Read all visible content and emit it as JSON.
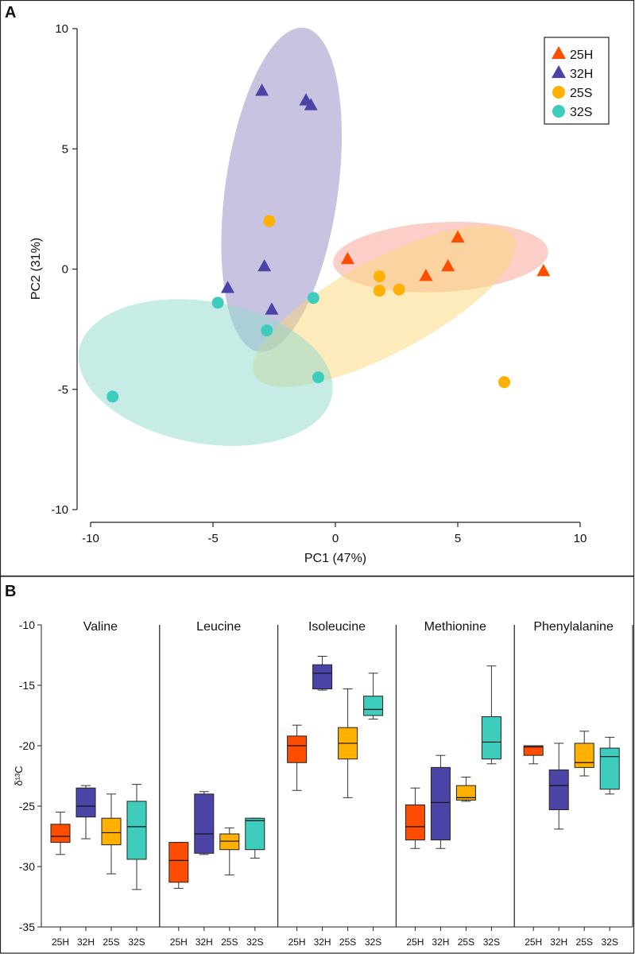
{
  "panels": {
    "a_label": "A",
    "b_label": "B"
  },
  "colors": {
    "25H": "#ff4d00",
    "32H": "#4b44a6",
    "25S": "#ffb000",
    "32S": "#3ecdbd",
    "ellipse_25H": "#f7a090",
    "ellipse_32H": "#8f87c4",
    "ellipse_25S": "#fcd77a",
    "ellipse_32S": "#8fd9cd"
  },
  "chart_data": [
    {
      "type": "scatter",
      "panel": "A",
      "xlabel": "PC1 (47%)",
      "ylabel": "PC2 (31%)",
      "xlim": [
        -10,
        10
      ],
      "ylim": [
        -10,
        10
      ],
      "xticks": [
        -10,
        -5,
        0,
        5,
        10
      ],
      "yticks": [
        10,
        5,
        0,
        -5,
        -10
      ],
      "xtick_labels": [
        "-10",
        "-5",
        "0",
        "5",
        "10"
      ],
      "ytick_labels": [
        "10",
        "5",
        "0",
        "-5",
        "-10"
      ],
      "legend_position": "top-right",
      "series": [
        {
          "name": "25H",
          "marker": "triangle",
          "points": [
            [
              0.5,
              0.4
            ],
            [
              3.7,
              -0.3
            ],
            [
              4.6,
              0.1
            ],
            [
              5.0,
              1.3
            ],
            [
              8.5,
              -0.1
            ]
          ],
          "ellipse": {
            "cx": 4.3,
            "cy": 0.5,
            "rx": 4.4,
            "ry": 1.45,
            "angle": 3
          }
        },
        {
          "name": "32H",
          "marker": "triangle",
          "points": [
            [
              -3.0,
              7.4
            ],
            [
              -1.2,
              7.0
            ],
            [
              -1.0,
              6.8
            ],
            [
              -2.9,
              0.1
            ],
            [
              -4.4,
              -0.8
            ],
            [
              -2.6,
              -1.7
            ]
          ],
          "ellipse": {
            "cx": -2.2,
            "cy": 3.3,
            "rx": 2.3,
            "ry": 6.8,
            "angle": -8
          }
        },
        {
          "name": "25S",
          "marker": "circle",
          "points": [
            [
              -2.7,
              2.0
            ],
            [
              1.8,
              -0.3
            ],
            [
              1.8,
              -0.9
            ],
            [
              2.6,
              -0.85
            ],
            [
              6.9,
              -4.7
            ]
          ],
          "ellipse": {
            "cx": 2.0,
            "cy": -1.55,
            "rx": 6.0,
            "ry": 1.95,
            "angle": 28
          }
        },
        {
          "name": "32S",
          "marker": "circle",
          "points": [
            [
              -4.8,
              -1.4
            ],
            [
              -0.9,
              -1.2
            ],
            [
              -2.8,
              -2.55
            ],
            [
              -0.7,
              -4.5
            ],
            [
              -9.1,
              -5.3
            ]
          ],
          "ellipse": {
            "cx": -5.3,
            "cy": -4.3,
            "rx": 5.25,
            "ry": 2.95,
            "angle": -10
          }
        }
      ]
    },
    {
      "type": "box",
      "panel": "B",
      "ylabel": "δ¹³C",
      "ylim": [
        -35,
        -10
      ],
      "yticks": [
        -10,
        -15,
        -20,
        -25,
        -30,
        -35
      ],
      "ytick_labels": [
        "-10",
        "-15",
        "-20",
        "-25",
        "-30",
        "-35"
      ],
      "categories": [
        "25H",
        "32H",
        "25S",
        "32S"
      ],
      "groups": [
        {
          "title": "Valine",
          "boxes": [
            {
              "group": "25H",
              "min": -29.0,
              "q1": -28.0,
              "median": -27.5,
              "q3": -26.5,
              "max": -25.5
            },
            {
              "group": "32H",
              "min": -27.7,
              "q1": -25.9,
              "median": -25.0,
              "q3": -23.5,
              "max": -23.3
            },
            {
              "group": "25S",
              "min": -30.6,
              "q1": -28.2,
              "median": -27.2,
              "q3": -26.0,
              "max": -24.0
            },
            {
              "group": "32S",
              "min": -31.9,
              "q1": -29.4,
              "median": -26.7,
              "q3": -24.6,
              "max": -23.2
            }
          ]
        },
        {
          "title": "Leucine",
          "boxes": [
            {
              "group": "25H",
              "min": -31.8,
              "q1": -31.3,
              "median": -29.5,
              "q3": -28.0,
              "max": -28.0
            },
            {
              "group": "32H",
              "min": -29.0,
              "q1": -28.9,
              "median": -27.3,
              "q3": -24.0,
              "max": -23.8
            },
            {
              "group": "25S",
              "min": -30.7,
              "q1": -28.6,
              "median": -27.9,
              "q3": -27.3,
              "max": -26.8
            },
            {
              "group": "32S",
              "min": -29.3,
              "q1": -28.6,
              "median": -26.2,
              "q3": -26.0,
              "max": -26.0
            }
          ]
        },
        {
          "title": "Isoleucine",
          "boxes": [
            {
              "group": "25H",
              "min": -23.7,
              "q1": -21.4,
              "median": -20.0,
              "q3": -19.2,
              "max": -18.3
            },
            {
              "group": "32H",
              "min": -15.4,
              "q1": -15.3,
              "median": -14.0,
              "q3": -13.3,
              "max": -12.6
            },
            {
              "group": "25S",
              "min": -24.3,
              "q1": -21.1,
              "median": -19.8,
              "q3": -18.5,
              "max": -15.3
            },
            {
              "group": "32S",
              "min": -17.8,
              "q1": -17.5,
              "median": -17.0,
              "q3": -15.9,
              "max": -14.0
            }
          ]
        },
        {
          "title": "Methionine",
          "boxes": [
            {
              "group": "25H",
              "min": -28.5,
              "q1": -27.8,
              "median": -26.7,
              "q3": -24.9,
              "max": -23.5
            },
            {
              "group": "32H",
              "min": -28.5,
              "q1": -27.8,
              "median": -24.7,
              "q3": -21.8,
              "max": -20.8
            },
            {
              "group": "25S",
              "min": -24.6,
              "q1": -24.5,
              "median": -24.3,
              "q3": -23.3,
              "max": -22.6
            },
            {
              "group": "32S",
              "min": -21.5,
              "q1": -21.1,
              "median": -19.7,
              "q3": -17.6,
              "max": -13.4
            }
          ]
        },
        {
          "title": "Phenylalanine",
          "boxes": [
            {
              "group": "25H",
              "min": -21.5,
              "q1": -20.8,
              "median": -20.1,
              "q3": -20.0,
              "max": -20.0
            },
            {
              "group": "32H",
              "min": -26.9,
              "q1": -25.3,
              "median": -23.3,
              "q3": -22.0,
              "max": -19.8
            },
            {
              "group": "25S",
              "min": -22.5,
              "q1": -21.8,
              "median": -21.4,
              "q3": -19.8,
              "max": -18.8
            },
            {
              "group": "32S",
              "min": -24.0,
              "q1": -23.6,
              "median": -20.9,
              "q3": -20.2,
              "max": -19.3
            }
          ]
        }
      ]
    }
  ]
}
